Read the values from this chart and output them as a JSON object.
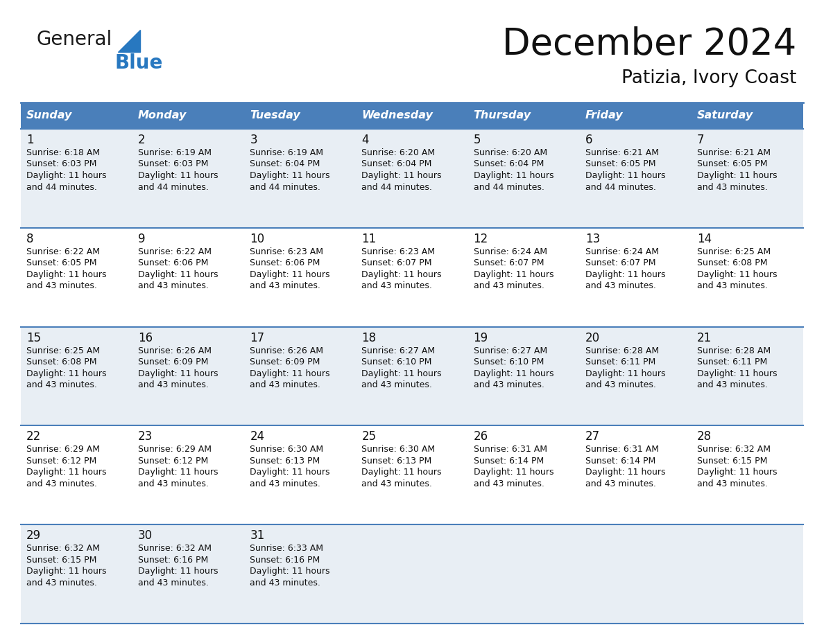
{
  "title": "December 2024",
  "subtitle": "Patizia, Ivory Coast",
  "header_bg": "#4a7fba",
  "header_text_color": "#ffffff",
  "day_names": [
    "Sunday",
    "Monday",
    "Tuesday",
    "Wednesday",
    "Thursday",
    "Friday",
    "Saturday"
  ],
  "alt_row_bg": "#e8eef4",
  "normal_row_bg": "#ffffff",
  "border_color": "#4a7fba",
  "days": [
    {
      "day": 1,
      "col": 0,
      "row": 0,
      "sunrise": "6:18 AM",
      "sunset": "6:03 PM",
      "daylight": "11 hours and 44 minutes."
    },
    {
      "day": 2,
      "col": 1,
      "row": 0,
      "sunrise": "6:19 AM",
      "sunset": "6:03 PM",
      "daylight": "11 hours and 44 minutes."
    },
    {
      "day": 3,
      "col": 2,
      "row": 0,
      "sunrise": "6:19 AM",
      "sunset": "6:04 PM",
      "daylight": "11 hours and 44 minutes."
    },
    {
      "day": 4,
      "col": 3,
      "row": 0,
      "sunrise": "6:20 AM",
      "sunset": "6:04 PM",
      "daylight": "11 hours and 44 minutes."
    },
    {
      "day": 5,
      "col": 4,
      "row": 0,
      "sunrise": "6:20 AM",
      "sunset": "6:04 PM",
      "daylight": "11 hours and 44 minutes."
    },
    {
      "day": 6,
      "col": 5,
      "row": 0,
      "sunrise": "6:21 AM",
      "sunset": "6:05 PM",
      "daylight": "11 hours and 44 minutes."
    },
    {
      "day": 7,
      "col": 6,
      "row": 0,
      "sunrise": "6:21 AM",
      "sunset": "6:05 PM",
      "daylight": "11 hours and 43 minutes."
    },
    {
      "day": 8,
      "col": 0,
      "row": 1,
      "sunrise": "6:22 AM",
      "sunset": "6:05 PM",
      "daylight": "11 hours and 43 minutes."
    },
    {
      "day": 9,
      "col": 1,
      "row": 1,
      "sunrise": "6:22 AM",
      "sunset": "6:06 PM",
      "daylight": "11 hours and 43 minutes."
    },
    {
      "day": 10,
      "col": 2,
      "row": 1,
      "sunrise": "6:23 AM",
      "sunset": "6:06 PM",
      "daylight": "11 hours and 43 minutes."
    },
    {
      "day": 11,
      "col": 3,
      "row": 1,
      "sunrise": "6:23 AM",
      "sunset": "6:07 PM",
      "daylight": "11 hours and 43 minutes."
    },
    {
      "day": 12,
      "col": 4,
      "row": 1,
      "sunrise": "6:24 AM",
      "sunset": "6:07 PM",
      "daylight": "11 hours and 43 minutes."
    },
    {
      "day": 13,
      "col": 5,
      "row": 1,
      "sunrise": "6:24 AM",
      "sunset": "6:07 PM",
      "daylight": "11 hours and 43 minutes."
    },
    {
      "day": 14,
      "col": 6,
      "row": 1,
      "sunrise": "6:25 AM",
      "sunset": "6:08 PM",
      "daylight": "11 hours and 43 minutes."
    },
    {
      "day": 15,
      "col": 0,
      "row": 2,
      "sunrise": "6:25 AM",
      "sunset": "6:08 PM",
      "daylight": "11 hours and 43 minutes."
    },
    {
      "day": 16,
      "col": 1,
      "row": 2,
      "sunrise": "6:26 AM",
      "sunset": "6:09 PM",
      "daylight": "11 hours and 43 minutes."
    },
    {
      "day": 17,
      "col": 2,
      "row": 2,
      "sunrise": "6:26 AM",
      "sunset": "6:09 PM",
      "daylight": "11 hours and 43 minutes."
    },
    {
      "day": 18,
      "col": 3,
      "row": 2,
      "sunrise": "6:27 AM",
      "sunset": "6:10 PM",
      "daylight": "11 hours and 43 minutes."
    },
    {
      "day": 19,
      "col": 4,
      "row": 2,
      "sunrise": "6:27 AM",
      "sunset": "6:10 PM",
      "daylight": "11 hours and 43 minutes."
    },
    {
      "day": 20,
      "col": 5,
      "row": 2,
      "sunrise": "6:28 AM",
      "sunset": "6:11 PM",
      "daylight": "11 hours and 43 minutes."
    },
    {
      "day": 21,
      "col": 6,
      "row": 2,
      "sunrise": "6:28 AM",
      "sunset": "6:11 PM",
      "daylight": "11 hours and 43 minutes."
    },
    {
      "day": 22,
      "col": 0,
      "row": 3,
      "sunrise": "6:29 AM",
      "sunset": "6:12 PM",
      "daylight": "11 hours and 43 minutes."
    },
    {
      "day": 23,
      "col": 1,
      "row": 3,
      "sunrise": "6:29 AM",
      "sunset": "6:12 PM",
      "daylight": "11 hours and 43 minutes."
    },
    {
      "day": 24,
      "col": 2,
      "row": 3,
      "sunrise": "6:30 AM",
      "sunset": "6:13 PM",
      "daylight": "11 hours and 43 minutes."
    },
    {
      "day": 25,
      "col": 3,
      "row": 3,
      "sunrise": "6:30 AM",
      "sunset": "6:13 PM",
      "daylight": "11 hours and 43 minutes."
    },
    {
      "day": 26,
      "col": 4,
      "row": 3,
      "sunrise": "6:31 AM",
      "sunset": "6:14 PM",
      "daylight": "11 hours and 43 minutes."
    },
    {
      "day": 27,
      "col": 5,
      "row": 3,
      "sunrise": "6:31 AM",
      "sunset": "6:14 PM",
      "daylight": "11 hours and 43 minutes."
    },
    {
      "day": 28,
      "col": 6,
      "row": 3,
      "sunrise": "6:32 AM",
      "sunset": "6:15 PM",
      "daylight": "11 hours and 43 minutes."
    },
    {
      "day": 29,
      "col": 0,
      "row": 4,
      "sunrise": "6:32 AM",
      "sunset": "6:15 PM",
      "daylight": "11 hours and 43 minutes."
    },
    {
      "day": 30,
      "col": 1,
      "row": 4,
      "sunrise": "6:32 AM",
      "sunset": "6:16 PM",
      "daylight": "11 hours and 43 minutes."
    },
    {
      "day": 31,
      "col": 2,
      "row": 4,
      "sunrise": "6:33 AM",
      "sunset": "6:16 PM",
      "daylight": "11 hours and 43 minutes."
    }
  ],
  "logo_general_color": "#1a1a1a",
  "logo_blue_color": "#2878c0",
  "logo_triangle_color": "#2878c0"
}
